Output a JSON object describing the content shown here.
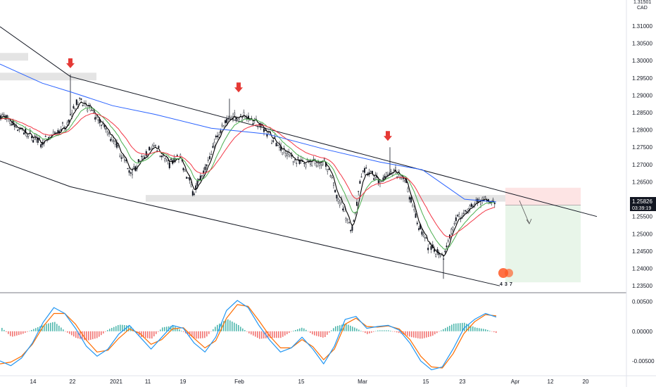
{
  "chart_data": {
    "type": "candlestick",
    "currency": "CAD",
    "axis_top_label": "1.31501",
    "price_ticks": [
      "1.31000",
      "1.30500",
      "1.30000",
      "1.29500",
      "1.29000",
      "1.28500",
      "1.28000",
      "1.27500",
      "1.27000",
      "1.26500",
      "1.26000",
      "1.25500",
      "1.25000",
      "1.24500",
      "1.24000",
      "1.23500"
    ],
    "price_range": [
      1.233,
      1.3175
    ],
    "current_price": "1.25826",
    "countdown": "03:39:19",
    "osc_ticks": [
      "0.00500",
      "0.00000",
      "-0.00500"
    ],
    "osc_range": [
      -0.0075,
      0.0065
    ],
    "date_labels": [
      "14",
      "22",
      "2021",
      "11",
      "19",
      "Feb",
      "15",
      "Mar",
      "15",
      "23",
      "Apr",
      "12",
      "20"
    ],
    "channel_upper": [
      [
        0,
        1.3098
      ],
      [
        100,
        1.2954
      ],
      [
        848,
        1.255
      ]
    ],
    "channel_lower": [
      [
        0,
        1.271
      ],
      [
        100,
        1.2636
      ],
      [
        710,
        1.235
      ]
    ],
    "highs_marked": [
      1.296,
      1.289,
      1.275
    ],
    "resistance_zone": [
      1.2593,
      1.2612
    ],
    "entry_price": 1.25826,
    "target_price": 1.236,
    "stop_price": 1.2633,
    "ema_blue": [
      [
        0,
        1.299
      ],
      [
        60,
        1.2935
      ],
      [
        100,
        1.291
      ],
      [
        160,
        1.287
      ],
      [
        220,
        1.2845
      ],
      [
        300,
        1.2805
      ],
      [
        380,
        1.2788
      ],
      [
        460,
        1.2745
      ],
      [
        540,
        1.2707
      ],
      [
        600,
        1.2685
      ],
      [
        660,
        1.26
      ],
      [
        705,
        1.2592
      ]
    ],
    "macd_line": [
      -0.005,
      -0.0058,
      -0.0045,
      -0.002,
      0.0015,
      0.004,
      0.003,
      0.0005,
      -0.0025,
      -0.0042,
      -0.003,
      -0.0005,
      0.001,
      -0.001,
      -0.003,
      -0.001,
      0.001,
      0.0005,
      -0.002,
      -0.0035,
      -0.001,
      0.0035,
      0.0052,
      0.004,
      0.001,
      -0.0015,
      -0.0035,
      -0.0028,
      -0.001,
      -0.003,
      -0.0055,
      -0.0025,
      0.002,
      0.0025,
      0.0005,
      0.0008,
      0.001,
      0.0002,
      -0.002,
      -0.005,
      -0.0065,
      -0.006,
      -0.003,
      0.0005,
      0.002,
      0.003,
      0.0024
    ],
    "signal_line": [
      -0.0055,
      -0.0052,
      -0.0042,
      -0.0022,
      0.0008,
      0.003,
      0.003,
      0.0012,
      -0.0015,
      -0.0035,
      -0.0032,
      -0.0012,
      0.0004,
      -0.0004,
      -0.0022,
      -0.0014,
      0.0004,
      0.0006,
      -0.0012,
      -0.0028,
      -0.0016,
      0.0022,
      0.0045,
      0.0042,
      0.0018,
      -0.0008,
      -0.0028,
      -0.0028,
      -0.0014,
      -0.0026,
      -0.0048,
      -0.003,
      0.0012,
      0.0022,
      0.0008,
      0.0007,
      0.0009,
      0.0004,
      -0.0014,
      -0.0042,
      -0.006,
      -0.0062,
      -0.0038,
      -0.0004,
      0.0016,
      0.0028,
      0.0026
    ],
    "colors": {
      "ema_blue": "#2962ff",
      "ema_red": "#f23645",
      "ema_green": "#4caf50",
      "price": "#131722",
      "macd": "#2196f3",
      "signal": "#ff6d00",
      "hist_pos": "#26a69a",
      "hist_neg": "#ef5350",
      "arrow": "#e53935",
      "zone": "#d9d9d9",
      "target": "#e8f5e9",
      "stop": "#fde4e4",
      "price_tag": "#131722",
      "earnings_badge": "#ff5722"
    },
    "grid": false,
    "earnings_labels": [
      "4",
      "3",
      "7"
    ]
  }
}
